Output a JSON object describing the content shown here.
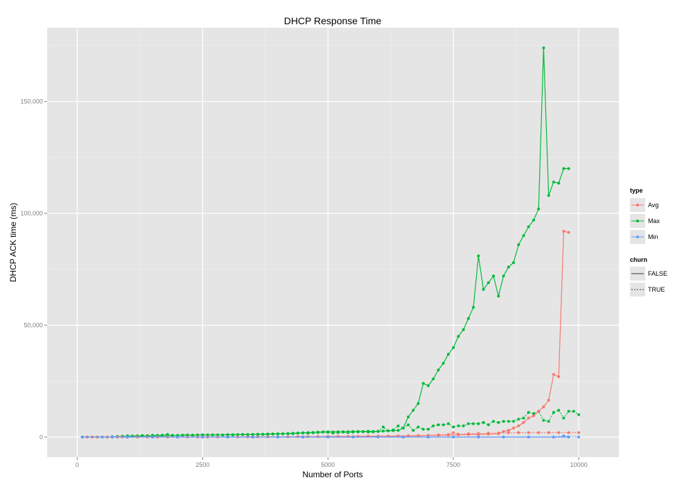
{
  "chart_data": {
    "type": "line",
    "title": "DHCP Response Time",
    "xlabel": "Number of Ports",
    "ylabel": "DHCP ACK time (ms)",
    "xlim": [
      -600,
      10800
    ],
    "ylim": [
      -9000,
      183000
    ],
    "x_ticks": [
      0,
      2500,
      5000,
      7500,
      10000
    ],
    "x_tick_labels": [
      "0",
      "2500",
      "5000",
      "7500",
      "10000"
    ],
    "y_ticks": [
      0,
      50000,
      100000,
      150000
    ],
    "y_tick_labels": [
      "0",
      "50,000",
      "100,000",
      "150,000"
    ],
    "grid": true,
    "legend_position": "right",
    "legends": [
      {
        "title": "type",
        "items": [
          {
            "label": "Avg",
            "color": "#F8766D"
          },
          {
            "label": "Max",
            "color": "#00BA38"
          },
          {
            "label": "Min",
            "color": "#619CFF"
          }
        ]
      },
      {
        "title": "churn",
        "items": [
          {
            "label": "FALSE",
            "linetype": "solid"
          },
          {
            "label": "TRUE",
            "linetype": "dotted"
          }
        ]
      }
    ],
    "series": [
      {
        "type": "Max",
        "churn": "FALSE",
        "color": "#00BA38",
        "x": [
          100,
          200,
          300,
          400,
          500,
          600,
          700,
          800,
          900,
          1000,
          1100,
          1200,
          1300,
          1400,
          1500,
          1600,
          1700,
          1800,
          1900,
          2000,
          2100,
          2200,
          2300,
          2400,
          2500,
          2600,
          2700,
          2800,
          2900,
          3000,
          3100,
          3200,
          3300,
          3400,
          3500,
          3600,
          3700,
          3800,
          3900,
          4000,
          4100,
          4200,
          4300,
          4400,
          4500,
          4600,
          4700,
          4800,
          4900,
          5000,
          5100,
          5200,
          5300,
          5400,
          5500,
          5600,
          5700,
          5800,
          5900,
          6000,
          6100,
          6200,
          6300,
          6400,
          6500,
          6600,
          6700,
          6800,
          6900,
          7000,
          7100,
          7200,
          7300,
          7400,
          7500,
          7600,
          7700,
          7800,
          7900,
          8000,
          8100,
          8200,
          8300,
          8400,
          8500,
          8600,
          8700,
          8800,
          8900,
          9000,
          9100,
          9200,
          9300,
          9400,
          9500,
          9600,
          9700,
          9800
        ],
        "y": [
          0,
          0,
          0,
          0,
          0,
          0,
          0,
          100,
          200,
          300,
          300,
          400,
          500,
          500,
          500,
          600,
          600,
          700,
          700,
          800,
          800,
          800,
          900,
          900,
          1000,
          1000,
          1000,
          1000,
          1000,
          1100,
          1100,
          1100,
          1200,
          1200,
          1200,
          1300,
          1300,
          1400,
          1400,
          1500,
          1500,
          1600,
          1700,
          1800,
          1900,
          2000,
          2100,
          2200,
          2300,
          2400,
          2300,
          2400,
          2400,
          2400,
          2500,
          2500,
          2500,
          2600,
          2500,
          2600,
          2700,
          2800,
          2900,
          3000,
          4000,
          9000,
          12000,
          15000,
          24000,
          23000,
          26000,
          30000,
          33000,
          37000,
          40000,
          45000,
          48000,
          53000,
          58000,
          81000,
          66000,
          69000,
          72000,
          63000,
          72000,
          76000,
          78000,
          86000,
          90000,
          94000,
          97000,
          102000,
          174000,
          108000,
          114000,
          113500,
          120000,
          120000
        ]
      },
      {
        "type": "Max",
        "churn": "TRUE",
        "color": "#00BA38",
        "x": [
          700,
          800,
          900,
          1000,
          1100,
          1200,
          1300,
          1400,
          1500,
          1600,
          1700,
          1800,
          1900,
          2000,
          2100,
          2200,
          2300,
          2400,
          2500,
          2600,
          2700,
          2800,
          2900,
          3000,
          3100,
          3200,
          3300,
          3400,
          3500,
          3600,
          3700,
          3800,
          3900,
          4000,
          4100,
          4200,
          4300,
          4400,
          4500,
          4600,
          4700,
          4800,
          4900,
          5000,
          5100,
          5200,
          5300,
          5400,
          5500,
          5600,
          5700,
          5800,
          5900,
          6000,
          6100,
          6200,
          6300,
          6400,
          6500,
          6600,
          6700,
          6800,
          6900,
          7000,
          7100,
          7200,
          7300,
          7400,
          7500,
          7600,
          7700,
          7800,
          7900,
          8000,
          8100,
          8200,
          8300,
          8400,
          8500,
          8600,
          8700,
          8800,
          8900,
          9000,
          9100,
          9200,
          9300,
          9400,
          9500,
          9600,
          9700,
          9800,
          9900,
          10000
        ],
        "y": [
          200,
          300,
          400,
          600,
          500,
          600,
          700,
          700,
          800,
          800,
          900,
          1200,
          800,
          700,
          900,
          1000,
          800,
          1000,
          1000,
          900,
          1000,
          1000,
          900,
          1000,
          900,
          1100,
          1100,
          1000,
          1200,
          1100,
          1200,
          1200,
          1300,
          1400,
          1400,
          1500,
          1500,
          1700,
          1800,
          1700,
          1900,
          2000,
          2200,
          2100,
          1800,
          2000,
          2200,
          2000,
          2200,
          2300,
          2400,
          2200,
          2300,
          2500,
          4500,
          2800,
          3200,
          5000,
          4000,
          5500,
          3000,
          4500,
          3500,
          3500,
          5000,
          5500,
          5500,
          6000,
          4500,
          5000,
          5000,
          6000,
          6000,
          6000,
          6500,
          5500,
          7000,
          6500,
          7000,
          7000,
          7000,
          8000,
          8500,
          11000,
          10500,
          11500,
          7500,
          7000,
          11000,
          12000,
          8500,
          11500,
          11500,
          10000
        ]
      },
      {
        "type": "Avg",
        "churn": "FALSE",
        "color": "#F8766D",
        "x": [
          100,
          200,
          300,
          400,
          500,
          600,
          700,
          800,
          900,
          1000,
          1200,
          1400,
          1600,
          1800,
          2000,
          2200,
          2400,
          2600,
          2800,
          3000,
          3200,
          3400,
          3600,
          3800,
          4000,
          4200,
          4400,
          4600,
          4800,
          5000,
          5200,
          5400,
          5600,
          5800,
          6000,
          6200,
          6400,
          6600,
          6800,
          7000,
          7200,
          7400,
          7600,
          7800,
          8000,
          8200,
          8400,
          8500,
          8600,
          8700,
          8800,
          8900,
          9000,
          9100,
          9200,
          9300,
          9400,
          9500,
          9600,
          9700,
          9800
        ],
        "y": [
          0,
          0,
          0,
          0,
          0,
          0,
          0,
          0,
          0,
          0,
          0,
          0,
          0,
          0,
          0,
          0,
          0,
          0,
          50,
          50,
          50,
          100,
          100,
          100,
          150,
          150,
          200,
          200,
          200,
          300,
          300,
          300,
          300,
          400,
          400,
          400,
          450,
          500,
          600,
          700,
          800,
          900,
          1000,
          1100,
          1200,
          1300,
          1500,
          2500,
          3000,
          4000,
          5000,
          6500,
          8500,
          9500,
          11500,
          13500,
          16500,
          28000,
          27000,
          92000,
          91500
        ]
      },
      {
        "type": "Avg",
        "churn": "TRUE",
        "color": "#F8766D",
        "x": [
          700,
          1000,
          1500,
          2000,
          2500,
          3000,
          3500,
          4000,
          4500,
          5000,
          5500,
          6000,
          6200,
          6400,
          6600,
          6800,
          7000,
          7200,
          7400,
          7500,
          7600,
          7800,
          8000,
          8200,
          8400,
          8600,
          8800,
          9000,
          9200,
          9400,
          9600,
          9800,
          10000
        ],
        "y": [
          0,
          0,
          0,
          0,
          0,
          50,
          100,
          100,
          150,
          200,
          250,
          400,
          400,
          500,
          600,
          700,
          800,
          1000,
          1200,
          2000,
          1300,
          1500,
          1600,
          1700,
          1800,
          1900,
          2000,
          2000,
          2000,
          2000,
          2000,
          2000,
          2000
        ]
      },
      {
        "type": "Min",
        "churn": "FALSE",
        "color": "#619CFF",
        "x": [
          100,
          500,
          1000,
          1500,
          2000,
          2500,
          3000,
          3500,
          4000,
          4500,
          5000,
          5500,
          6000,
          6500,
          7000,
          7500,
          8000,
          8500,
          9000,
          9500,
          9800
        ],
        "y": [
          0,
          0,
          0,
          0,
          0,
          0,
          0,
          0,
          0,
          0,
          0,
          0,
          0,
          0,
          0,
          0,
          0,
          0,
          0,
          0,
          0
        ]
      },
      {
        "type": "Min",
        "churn": "TRUE",
        "color": "#619CFF",
        "x": [
          700,
          1000,
          1500,
          2000,
          2500,
          3000,
          3500,
          4000,
          4500,
          5000,
          5500,
          6000,
          6500,
          7000,
          7500,
          8000,
          8500,
          9000,
          9500,
          9700,
          10000
        ],
        "y": [
          0,
          0,
          0,
          0,
          0,
          0,
          0,
          0,
          0,
          0,
          0,
          0,
          0,
          0,
          0,
          0,
          0,
          0,
          0,
          500,
          0
        ]
      }
    ]
  }
}
